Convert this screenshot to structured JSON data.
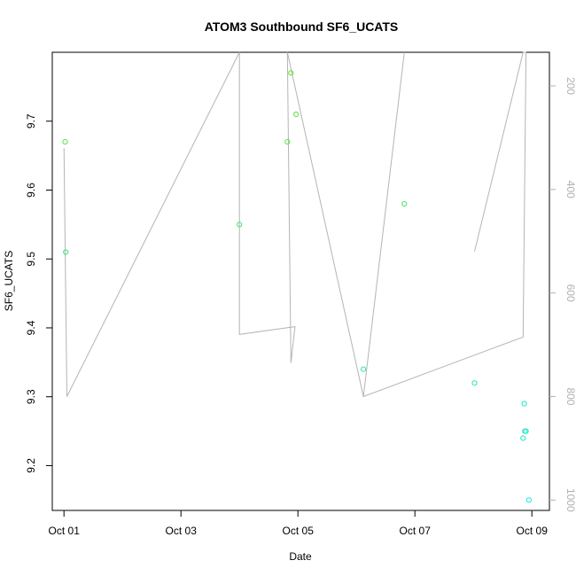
{
  "chart_data": {
    "type": "scatter",
    "title": "ATOM3 Southbound SF6_UCATS",
    "xlabel": "Date",
    "ylabel": "SF6_UCATS",
    "x_ticks": [
      "Oct 01",
      "Oct 03",
      "Oct 05",
      "Oct 07",
      "Oct 09"
    ],
    "x_tick_days": [
      1,
      3,
      5,
      7,
      9
    ],
    "xlim_days": [
      0.8,
      9.3
    ],
    "ylim": [
      9.135,
      9.8
    ],
    "y_ticks": [
      9.2,
      9.3,
      9.4,
      9.5,
      9.6,
      9.7
    ],
    "y2_ticks": [
      200,
      400,
      600,
      800,
      1000
    ],
    "y2lim_reversed": [
      1020,
      135
    ],
    "grid": false,
    "series": [
      {
        "values": [
          {
            "x": 1.02,
            "y": 9.67
          },
          {
            "x": 1.03,
            "y": 9.51
          },
          {
            "x": 4.0,
            "y": 9.55
          },
          {
            "x": 4.82,
            "y": 9.67
          },
          {
            "x": 4.88,
            "y": 9.77
          },
          {
            "x": 4.97,
            "y": 9.71
          },
          {
            "x": 6.12,
            "y": 9.34
          },
          {
            "x": 6.82,
            "y": 9.58
          },
          {
            "x": 8.02,
            "y": 9.32
          },
          {
            "x": 8.85,
            "y": 9.24
          },
          {
            "x": 8.87,
            "y": 9.29
          },
          {
            "x": 8.88,
            "y": 9.25
          },
          {
            "x": 8.9,
            "y": 9.25
          },
          {
            "x": 8.95,
            "y": 9.15
          }
        ]
      },
      {
        "axis": "right",
        "values": [
          {
            "x": 1.0,
            "y": 320
          },
          {
            "x": 1.05,
            "y": 800
          },
          {
            "x": 4.0,
            "y": 135
          },
          {
            "x": 4.0,
            "y": 680
          },
          {
            "x": 4.95,
            "y": 665
          },
          {
            "x": 4.88,
            "y": 735
          },
          {
            "x": 4.82,
            "y": 135
          },
          {
            "x": 6.12,
            "y": 800
          },
          {
            "x": 6.82,
            "y": 135
          },
          {
            "x": 6.12,
            "y": 800
          },
          {
            "x": 8.85,
            "y": 685
          },
          {
            "x": 8.9,
            "y": 135
          },
          {
            "x": 8.85,
            "y": 135
          },
          {
            "x": 8.02,
            "y": 520
          }
        ]
      }
    ]
  }
}
